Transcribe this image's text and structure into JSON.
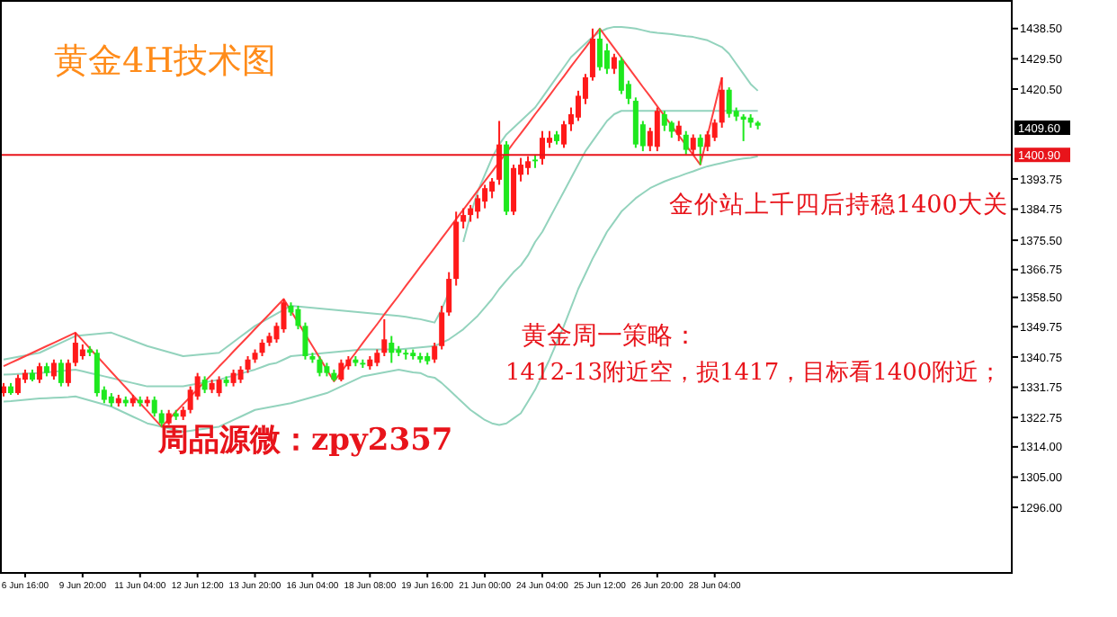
{
  "chart_data": {
    "type": "candlestick",
    "title": "黄金4H技术图",
    "categories": [
      null,
      null,
      null,
      "6 Jun 16:00",
      null,
      null,
      null,
      null,
      null,
      null,
      null,
      "9 Jun 20:00",
      null,
      null,
      null,
      null,
      null,
      null,
      null,
      "11 Jun 04:00",
      null,
      null,
      null,
      null,
      null,
      null,
      null,
      "12 Jun 12:00",
      null,
      null,
      null,
      null,
      null,
      null,
      null,
      "13 Jun 20:00",
      null,
      null,
      null,
      null,
      null,
      null,
      null,
      "16 Jun 04:00",
      null,
      null,
      null,
      null,
      null,
      null,
      null,
      "18 Jun 08:00",
      null,
      null,
      null,
      null,
      null,
      null,
      null,
      "19 Jun 16:00",
      null,
      null,
      null,
      null,
      null,
      null,
      null,
      "21 Jun 00:00",
      null,
      null,
      null,
      null,
      null,
      null,
      null,
      "24 Jun 04:00",
      null,
      null,
      null,
      null,
      null,
      null,
      null,
      "25 Jun 12:00",
      null,
      null,
      null,
      null,
      null,
      null,
      null,
      "26 Jun 20:00",
      null,
      null,
      null,
      null,
      null,
      null,
      null,
      "28 Jun 04:00",
      null,
      null,
      null,
      null,
      null,
      null
    ],
    "ohlc": [
      [
        1330,
        1333,
        1329,
        1332
      ],
      [
        1332,
        1333,
        1329.5,
        1330
      ],
      [
        1330,
        1335.5,
        1329.5,
        1334.5
      ],
      [
        1334,
        1337,
        1333,
        1336
      ],
      [
        1336,
        1337,
        1333.5,
        1334
      ],
      [
        1334,
        1339,
        1333,
        1338
      ],
      [
        1338,
        1339,
        1335,
        1336
      ],
      [
        1335,
        1340,
        1334,
        1339
      ],
      [
        1339,
        1340,
        1332,
        1333
      ],
      [
        1333,
        1340,
        1332,
        1339
      ],
      [
        1339,
        1348,
        1338,
        1345
      ],
      [
        1341,
        1344.5,
        1340,
        1343
      ],
      [
        1343,
        1344,
        1341,
        1342
      ],
      [
        1342,
        1343,
        1329,
        1330
      ],
      [
        1331,
        1332,
        1327,
        1328
      ],
      [
        1329,
        1330,
        1326,
        1327
      ],
      [
        1327,
        1329.5,
        1326,
        1328.5
      ],
      [
        1328,
        1329,
        1326,
        1327
      ],
      [
        1327,
        1329.5,
        1326,
        1328.5
      ],
      [
        1328,
        1329,
        1326,
        1327
      ],
      [
        1327,
        1329,
        1326,
        1328
      ],
      [
        1328,
        1329,
        1323,
        1324
      ],
      [
        1324,
        1325,
        1320,
        1321
      ],
      [
        1321,
        1325,
        1320.5,
        1324
      ],
      [
        1324,
        1325,
        1322,
        1323
      ],
      [
        1323,
        1326,
        1322,
        1325
      ],
      [
        1325,
        1332,
        1324,
        1331
      ],
      [
        1329,
        1336,
        1328,
        1335
      ],
      [
        1334,
        1335,
        1330,
        1331
      ],
      [
        1331,
        1334,
        1330,
        1333
      ],
      [
        1330,
        1335,
        1329,
        1334
      ],
      [
        1334,
        1335,
        1332,
        1333
      ],
      [
        1333,
        1337,
        1332,
        1336
      ],
      [
        1334,
        1338,
        1333,
        1337
      ],
      [
        1337,
        1341,
        1336,
        1340
      ],
      [
        1340,
        1343,
        1339,
        1342
      ],
      [
        1342,
        1346,
        1341,
        1345
      ],
      [
        1345,
        1348,
        1344,
        1347
      ],
      [
        1346,
        1351,
        1345,
        1350
      ],
      [
        1349,
        1358,
        1348,
        1357
      ],
      [
        1356,
        1357,
        1353,
        1354
      ],
      [
        1355,
        1356,
        1349,
        1350
      ],
      [
        1350,
        1351,
        1340,
        1341
      ],
      [
        1341,
        1342,
        1339,
        1340
      ],
      [
        1340,
        1341,
        1335,
        1336
      ],
      [
        1338,
        1339,
        1335,
        1336
      ],
      [
        1336,
        1337,
        1333.5,
        1334
      ],
      [
        1334,
        1340,
        1333.5,
        1339
      ],
      [
        1338,
        1341,
        1337,
        1340
      ],
      [
        1340,
        1341,
        1338,
        1339
      ],
      [
        1339,
        1340,
        1337.5,
        1338.5
      ],
      [
        1338,
        1341,
        1337,
        1340
      ],
      [
        1339,
        1343,
        1338,
        1342
      ],
      [
        1342,
        1352,
        1341,
        1346
      ],
      [
        1345,
        1347,
        1339,
        1342
      ],
      [
        1343,
        1344,
        1341,
        1342
      ],
      [
        1342,
        1343,
        1340,
        1341.5
      ],
      [
        1342,
        1343,
        1340,
        1341
      ],
      [
        1341,
        1342,
        1339,
        1340
      ],
      [
        1341,
        1342,
        1338.5,
        1339.5
      ],
      [
        1340,
        1345,
        1339,
        1344
      ],
      [
        1344,
        1356,
        1343,
        1354
      ],
      [
        1354,
        1366,
        1353,
        1364
      ],
      [
        1364,
        1384,
        1362,
        1381
      ],
      [
        1381,
        1385,
        1379,
        1383
      ],
      [
        1383,
        1386,
        1381,
        1385
      ],
      [
        1384,
        1389,
        1382,
        1388
      ],
      [
        1387,
        1392,
        1385,
        1391
      ],
      [
        1390,
        1394,
        1388,
        1393
      ],
      [
        1393.5,
        1411,
        1392,
        1404
      ],
      [
        1404,
        1405,
        1383,
        1384
      ],
      [
        1384,
        1398,
        1383,
        1397
      ],
      [
        1395,
        1400,
        1393,
        1398
      ],
      [
        1397,
        1400.5,
        1395,
        1399
      ],
      [
        1399.5,
        1401,
        1397,
        1399
      ],
      [
        1399.7,
        1408,
        1398,
        1406
      ],
      [
        1404.5,
        1408,
        1403,
        1406
      ],
      [
        1407,
        1408,
        1404,
        1405
      ],
      [
        1404,
        1411,
        1403,
        1410
      ],
      [
        1410,
        1415,
        1408,
        1413
      ],
      [
        1412,
        1420,
        1411,
        1418.5
      ],
      [
        1417.6,
        1425,
        1416,
        1424
      ],
      [
        1424,
        1438.5,
        1423,
        1435.5
      ],
      [
        1435.5,
        1438.5,
        1426,
        1427
      ],
      [
        1432,
        1434,
        1425,
        1426.5
      ],
      [
        1426.5,
        1431,
        1425,
        1430
      ],
      [
        1429,
        1430,
        1419,
        1420
      ],
      [
        1422,
        1423,
        1416,
        1417.6
      ],
      [
        1417,
        1418,
        1403,
        1404
      ],
      [
        1410,
        1411,
        1402,
        1403.5
      ],
      [
        1403.5,
        1409,
        1402,
        1408
      ],
      [
        1403.3,
        1415,
        1402,
        1414
      ],
      [
        1413,
        1414,
        1408,
        1409.6
      ],
      [
        1410.5,
        1411,
        1406,
        1407.8
      ],
      [
        1406.9,
        1411,
        1405,
        1409.6
      ],
      [
        1406.9,
        1408,
        1401,
        1402.4
      ],
      [
        1402.4,
        1407,
        1401,
        1406
      ],
      [
        1406,
        1407,
        1398,
        1403.3
      ],
      [
        1403.3,
        1408,
        1402,
        1407
      ],
      [
        1406,
        1411.5,
        1405,
        1410.5
      ],
      [
        1410.5,
        1424,
        1409,
        1420.3
      ],
      [
        1420.3,
        1421,
        1412,
        1413.1
      ],
      [
        1414,
        1415,
        1411,
        1412.3
      ],
      [
        1412.3,
        1413,
        1405,
        1411.4
      ],
      [
        1412,
        1413,
        1409,
        1410.5
      ],
      [
        1410.5,
        1411,
        1408.5,
        1409.6
      ]
    ],
    "colors": [
      "#ff1a1a",
      "#1ee81e",
      "#ff1a1a",
      "#ff1a1a",
      "#1ee81e",
      "#ff1a1a",
      "#1ee81e",
      "#ff1a1a",
      "#1ee81e",
      "#ff1a1a",
      "#ff1a1a",
      "#ff1a1a",
      "#1ee81e",
      "#1ee81e",
      "#1ee81e",
      "#1ee81e",
      "#ff1a1a",
      "#1ee81e",
      "#ff1a1a",
      "#1ee81e",
      "#ff1a1a",
      "#1ee81e",
      "#1ee81e",
      "#ff1a1a",
      "#1ee81e",
      "#ff1a1a",
      "#ff1a1a",
      "#ff1a1a",
      "#1ee81e",
      "#ff1a1a",
      "#ff1a1a",
      "#1ee81e",
      "#ff1a1a",
      "#ff1a1a",
      "#ff1a1a",
      "#ff1a1a",
      "#ff1a1a",
      "#ff1a1a",
      "#ff1a1a",
      "#ff1a1a",
      "#1ee81e",
      "#1ee81e",
      "#1ee81e",
      "#1ee81e",
      "#1ee81e",
      "#1ee81e",
      "#1ee81e",
      "#ff1a1a",
      "#ff1a1a",
      "#1ee81e",
      "#1ee81e",
      "#ff1a1a",
      "#ff1a1a",
      "#ff1a1a",
      "#1ee81e",
      "#1ee81e",
      "#1ee81e",
      "#1ee81e",
      "#1ee81e",
      "#1ee81e",
      "#ff1a1a",
      "#ff1a1a",
      "#ff1a1a",
      "#ff1a1a",
      "#ff1a1a",
      "#ff1a1a",
      "#ff1a1a",
      "#ff1a1a",
      "#ff1a1a",
      "#ff1a1a",
      "#1ee81e",
      "#ff1a1a",
      "#ff1a1a",
      "#ff1a1a",
      "#1ee81e",
      "#ff1a1a",
      "#ff1a1a",
      "#1ee81e",
      "#ff1a1a",
      "#ff1a1a",
      "#ff1a1a",
      "#ff1a1a",
      "#ff1a1a",
      "#1ee81e",
      "#1ee81e",
      "#ff1a1a",
      "#1ee81e",
      "#1ee81e",
      "#1ee81e",
      "#1ee81e",
      "#ff1a1a",
      "#ff1a1a",
      "#1ee81e",
      "#1ee81e",
      "#ff1a1a",
      "#1ee81e",
      "#ff1a1a",
      "#1ee81e",
      "#ff1a1a",
      "#ff1a1a",
      "#ff1a1a",
      "#1ee81e",
      "#1ee81e",
      "#1ee81e",
      "#1ee81e",
      "#1ee81e"
    ],
    "series": [
      {
        "type": "line",
        "color": "#93d3bd",
        "values": [
          1340,
          1340.4,
          1340.8,
          1341.2,
          1341.6,
          1342,
          1343,
          1344,
          1345,
          1346,
          1347,
          1347.2,
          1347.4,
          1347.6,
          1347.8,
          1348,
          1347.2,
          1346.4,
          1345.6,
          1344.8,
          1344,
          1343.4,
          1342.8,
          1342.2,
          1341.6,
          1341,
          1341.2,
          1341.4,
          1341.6,
          1341.8,
          1342,
          1343.6,
          1345.2,
          1346.8,
          1348.4,
          1350,
          1351.2,
          1352.4,
          1353.6,
          1354.8,
          1356,
          1355.8,
          1355.6,
          1355.4,
          1355.2,
          1355,
          1354.8,
          1354.6,
          1354.4,
          1354.2,
          1354,
          1353.8,
          1353.6,
          1353.4,
          1353.2,
          1353,
          1352.7,
          1352.3,
          1352,
          1351.5,
          1351,
          1355,
          1360,
          null,
          1375,
          1383,
          1390,
          1395,
          1400,
          1404,
          1407,
          1409,
          1411,
          1413,
          1415,
          1418,
          1421,
          1424,
          1427,
          1430,
          1432,
          1434,
          1436,
          1437.5,
          1438.5,
          1439,
          1439,
          1438.8,
          1438.5,
          1438,
          1437.5,
          1437.2,
          1437,
          1436.8,
          1436.5,
          1436.2,
          1436,
          1435.5,
          1435,
          1434,
          1433,
          1431,
          1428,
          1425,
          1422,
          1420
        ]
      },
      {
        "type": "line",
        "color": "#93d3bd",
        "values": [
          1335.5,
          1335.6,
          1335.7,
          1335.8,
          1335.9,
          1336,
          1336.2,
          1336.4,
          1336.6,
          1336.8,
          1337,
          1336.5,
          1336,
          1335.5,
          1335,
          1334.5,
          1334,
          1333.5,
          1333,
          1332.5,
          1332,
          1332,
          1332,
          1332,
          1332,
          1332,
          1332.4,
          1332.8,
          1333.2,
          1333.6,
          1334,
          1334.6,
          1335.2,
          1335.8,
          1336.4,
          1337,
          1337.8,
          1338.6,
          1339,
          1340,
          1341,
          1341.2,
          1341.4,
          1341.6,
          1341.8,
          1342,
          1342.2,
          1342.4,
          1342.6,
          1342.8,
          1343,
          1343,
          1343,
          1343,
          1343,
          1343,
          1343.2,
          1343.4,
          1343.6,
          1343.8,
          1344,
          1345,
          1346,
          1347.5,
          1349,
          1351,
          1353,
          1355.5,
          1358,
          1361,
          1363.5,
          1366,
          1368,
          1371,
          1375,
          1378,
          1382,
          1386,
          1390,
          1394,
          1398,
          1402,
          1405,
          1408,
          1411,
          1413,
          1414,
          1414,
          1414,
          1414,
          1414,
          1414,
          1414,
          1414,
          1414,
          1414,
          1414,
          1414,
          1414,
          1414,
          1414,
          1414,
          1414,
          1414,
          1414,
          1414
        ]
      },
      {
        "type": "line",
        "color": "#93d3bd",
        "values": [
          1327.5,
          1327.6,
          1327.8,
          1328,
          1328.2,
          1328.4,
          1328.5,
          1328.6,
          1328.7,
          1328.8,
          1329,
          1328.4,
          1327.8,
          1327.2,
          1326.6,
          1326,
          1325,
          1324,
          1323,
          1322,
          1321,
          1320.5,
          1320,
          1319.5,
          1319,
          1318.5,
          1318.8,
          1319.1,
          1319.4,
          1319.7,
          1320,
          1321,
          1322,
          1323,
          1324,
          1325,
          1325.4,
          1325.8,
          1326.2,
          1326.6,
          1327,
          1327.6,
          1328.2,
          1328.8,
          1329.4,
          1330,
          1331,
          1332,
          1333,
          1334,
          1335,
          1335.4,
          1335.8,
          1336.2,
          1336.6,
          1337,
          1336.6,
          1336.2,
          1336,
          1335,
          1334.6,
          1333,
          1331,
          1329,
          1327,
          1325,
          1323.5,
          1322,
          1321,
          1320.5,
          1321,
          1322.5,
          1324,
          1327.5,
          1331,
          1335.5,
          1340,
          1345,
          1350,
          1355.5,
          1361,
          1365.5,
          1370,
          1374,
          1378,
          1381,
          1384,
          1386,
          1388,
          1389.5,
          1391,
          1392,
          1393,
          1393.8,
          1394.5,
          1395.3,
          1396,
          1396.8,
          1397.5,
          1398,
          1398.5,
          1399,
          1399.5,
          1399.8,
          1400,
          1400.5
        ]
      },
      {
        "type": "line",
        "color": "#ff4040",
        "values": [
          1338,
          1339,
          1340,
          1341,
          1342,
          1343,
          1344,
          1345,
          1346,
          1347,
          1348,
          1345.7,
          1343.3,
          1341,
          1338.7,
          1336.3,
          1334,
          1331.7,
          1329.3,
          1327,
          1324.7,
          1322.3,
          1320,
          1322.2,
          1324.5,
          1326.7,
          1328.9,
          1331.2,
          1333.4,
          1335.6,
          1337.9,
          1340.1,
          1342.4,
          1344.6,
          1346.8,
          1349.1,
          1351.3,
          1353.5,
          1355.8,
          1358,
          1354.5,
          1351,
          1347.5,
          1344,
          1340.5,
          1337,
          1333.5,
          1336.3,
          1339.2,
          1342,
          1344.9,
          1347.7,
          1350.5,
          1353.4,
          1356.2,
          1359,
          1361.9,
          1364.7,
          1367.6,
          1370.4,
          1373.2,
          1376.1,
          1378.9,
          1381.8,
          1384.6,
          1387.4,
          1390.3,
          1393.1,
          1395.9,
          1398.8,
          1401.6,
          1404.5,
          1407.3,
          1410.1,
          1413,
          1415.8,
          1418.6,
          1421.5,
          1424.3,
          1427.2,
          1430,
          1432.8,
          1435.7,
          1438.5,
          1435.6,
          1432.7,
          1429.8,
          1426.9,
          1424,
          1421.1,
          1418.3,
          1415.4,
          1412.5,
          1409.6,
          1406.7,
          1403.8,
          1400.9,
          1398,
          1406.7,
          1415.3,
          1424,
          null,
          null,
          null,
          null,
          null
        ]
      }
    ],
    "ylim": [
      1276.75,
      1447.0
    ],
    "yticks": [
      {
        "value": 1438.5,
        "label": "1438.50"
      },
      {
        "value": 1429.5,
        "label": "1429.50"
      },
      {
        "value": 1420.5,
        "label": "1420.50"
      },
      {
        "value": 1393.75,
        "label": "1393.75"
      },
      {
        "value": 1384.75,
        "label": "1384.75"
      },
      {
        "value": 1375.5,
        "label": "1375.50"
      },
      {
        "value": 1366.75,
        "label": "1366.75"
      },
      {
        "value": 1358.5,
        "label": "1358.50"
      },
      {
        "value": 1349.75,
        "label": "1349.75"
      },
      {
        "value": 1340.75,
        "label": "1340.75"
      },
      {
        "value": 1331.75,
        "label": "1331.75"
      },
      {
        "value": 1322.75,
        "label": "1322.75"
      },
      {
        "value": 1314,
        "label": "1314.00"
      },
      {
        "value": 1305,
        "label": "1305.00"
      },
      {
        "value": 1296,
        "label": "1296.00"
      }
    ],
    "ref_lines": [
      {
        "axis": "y",
        "value": 1400.9,
        "label": "1400.90",
        "color": "#e8141b"
      }
    ],
    "annotations": [
      "金价站上千四后持稳1400大关",
      "黄金周一策略：",
      "1412-13附近空，损1417，目标看1400附近；",
      "周品源微：zpy2357",
      "1409.60"
    ]
  }
}
